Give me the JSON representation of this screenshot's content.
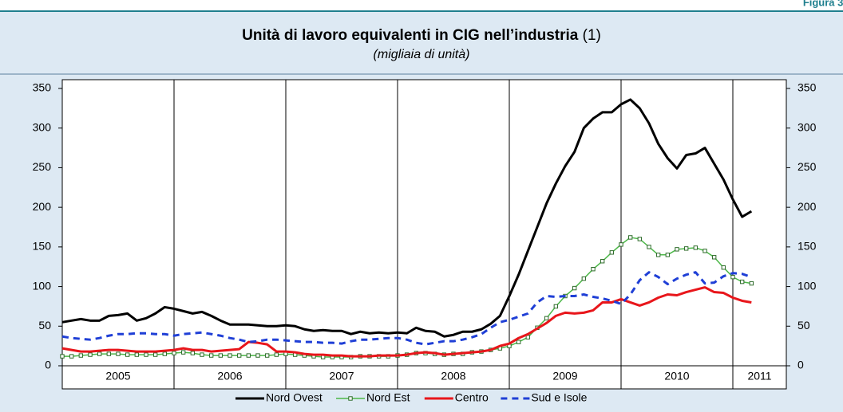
{
  "figure_label": "Figura 3.",
  "chart_data": {
    "type": "line",
    "title": "Unità di lavoro equivalenti in CIG nell’industria",
    "title_note": "(1)",
    "subtitle": "(migliaia di unità)",
    "categories": [
      null,
      null,
      null,
      null,
      null,
      null,
      null,
      null,
      null,
      null,
      null,
      null,
      null,
      null,
      null,
      null,
      null,
      null,
      null,
      null,
      null,
      null,
      null,
      null,
      null,
      null,
      null,
      null,
      null,
      null,
      null,
      null,
      null,
      null,
      null,
      null,
      null,
      null,
      null,
      null,
      null,
      null,
      null,
      null,
      null,
      null,
      null,
      null,
      null,
      null,
      null,
      null,
      null,
      null,
      null,
      null,
      null,
      null,
      null,
      null,
      null,
      null,
      null,
      null,
      null,
      null,
      null,
      null,
      null,
      null,
      null,
      null,
      null,
      null,
      null
    ],
    "x_labels": [
      "2005",
      "2006",
      "2007",
      "2008",
      "2009",
      "2010",
      "2011"
    ],
    "ylim": [
      0,
      350
    ],
    "yticks": [
      0,
      50,
      100,
      150,
      200,
      250,
      300,
      350
    ],
    "secondary_axis_mirror": true,
    "series": [
      {
        "name": "Nord Ovest",
        "color": "#000000",
        "style": "solid",
        "values": [
          55,
          57,
          59,
          57,
          57,
          63,
          64,
          66,
          57,
          60,
          66,
          74,
          72,
          69,
          66,
          68,
          63,
          57,
          52,
          52,
          52,
          51,
          50,
          50,
          51,
          50,
          46,
          44,
          45,
          44,
          44,
          40,
          43,
          41,
          42,
          41,
          42,
          41,
          48,
          44,
          43,
          37,
          39,
          43,
          43,
          46,
          53,
          63,
          88,
          115,
          145,
          175,
          205,
          230,
          252,
          270,
          300,
          312,
          320,
          320,
          330,
          336,
          325,
          306,
          280,
          262,
          249,
          266,
          268,
          275,
          255,
          235,
          210,
          188,
          195
        ]
      },
      {
        "name": "Nord Est",
        "color": "#4cb848",
        "style": "markers",
        "values": [
          12,
          12,
          13,
          14,
          15,
          15,
          15,
          14,
          14,
          14,
          14,
          15,
          16,
          17,
          16,
          14,
          13,
          13,
          13,
          13,
          13,
          13,
          13,
          14,
          15,
          14,
          13,
          12,
          11,
          11,
          11,
          11,
          12,
          12,
          12,
          12,
          13,
          14,
          16,
          16,
          15,
          14,
          15,
          15,
          17,
          18,
          20,
          22,
          25,
          30,
          36,
          48,
          60,
          75,
          88,
          98,
          110,
          122,
          132,
          143,
          153,
          162,
          160,
          150,
          140,
          140,
          147,
          148,
          149,
          145,
          137,
          124,
          112,
          106,
          104
        ]
      },
      {
        "name": "Centro",
        "color": "#e8161b",
        "style": "solid",
        "values": [
          22,
          20,
          18,
          18,
          19,
          20,
          20,
          19,
          18,
          18,
          18,
          19,
          20,
          22,
          20,
          20,
          18,
          19,
          20,
          21,
          30,
          29,
          27,
          18,
          18,
          17,
          15,
          14,
          14,
          13,
          13,
          12,
          12,
          12,
          13,
          13,
          13,
          14,
          16,
          17,
          16,
          14,
          15,
          16,
          17,
          18,
          20,
          25,
          28,
          35,
          40,
          47,
          54,
          63,
          67,
          66,
          67,
          70,
          80,
          80,
          84,
          80,
          76,
          80,
          86,
          90,
          89,
          93,
          96,
          99,
          93,
          92,
          86,
          82,
          80
        ]
      },
      {
        "name": "Sud e Isole",
        "color": "#1f3fd6",
        "style": "dashed",
        "values": [
          37,
          35,
          34,
          33,
          35,
          38,
          40,
          40,
          41,
          41,
          40,
          40,
          38,
          40,
          41,
          42,
          40,
          38,
          35,
          33,
          30,
          31,
          33,
          33,
          32,
          31,
          30,
          30,
          29,
          29,
          28,
          31,
          33,
          33,
          34,
          35,
          35,
          33,
          29,
          27,
          29,
          31,
          31,
          33,
          36,
          40,
          48,
          55,
          58,
          62,
          66,
          80,
          88,
          87,
          88,
          88,
          90,
          87,
          85,
          82,
          78,
          90,
          108,
          118,
          112,
          103,
          110,
          115,
          118,
          104,
          105,
          113,
          117,
          116,
          112
        ]
      }
    ]
  }
}
